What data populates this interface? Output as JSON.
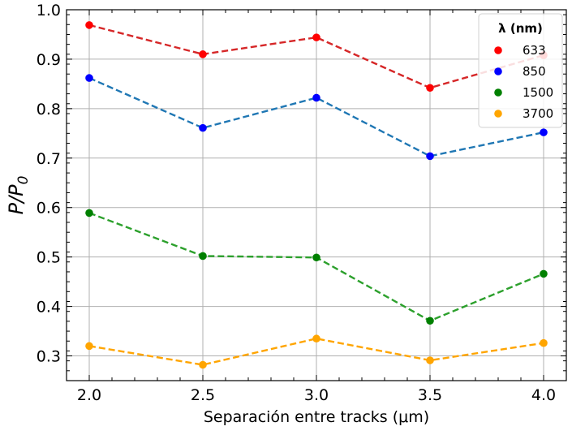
{
  "chart_data": {
    "type": "line",
    "title": "",
    "xlabel": "Separación entre tracks (μm)",
    "ylabel": "P/P0",
    "xlim": [
      1.9,
      4.1
    ],
    "ylim": [
      0.25,
      1.0
    ],
    "x_ticks": [
      2.0,
      2.5,
      3.0,
      3.5,
      4.0
    ],
    "x_tick_labels": [
      "2.0",
      "2.5",
      "3.0",
      "3.5",
      "4.0"
    ],
    "y_ticks": [
      0.3,
      0.4,
      0.5,
      0.6,
      0.7,
      0.8,
      0.9,
      1.0
    ],
    "y_tick_labels": [
      "0.3",
      "0.4",
      "0.5",
      "0.6",
      "0.7",
      "0.8",
      "0.9",
      "1.0"
    ],
    "grid": true,
    "legend": {
      "title": "λ (nm)",
      "placement": "top-right"
    },
    "x": [
      2.0,
      2.5,
      3.0,
      3.5,
      4.0
    ],
    "series": [
      {
        "name": "633",
        "values": [
          0.969,
          0.91,
          0.944,
          0.842,
          0.908
        ],
        "marker_color": "#ff0000",
        "line_color": "#d62728"
      },
      {
        "name": "850",
        "values": [
          0.862,
          0.761,
          0.822,
          0.704,
          0.752
        ],
        "marker_color": "#0000ff",
        "line_color": "#1f77b4"
      },
      {
        "name": "1500",
        "values": [
          0.589,
          0.502,
          0.499,
          0.371,
          0.466
        ],
        "marker_color": "#008000",
        "line_color": "#2ca02c"
      },
      {
        "name": "3700",
        "values": [
          0.32,
          0.282,
          0.335,
          0.291,
          0.326
        ],
        "marker_color": "#ffa500",
        "line_color": "#ffa500"
      }
    ]
  }
}
